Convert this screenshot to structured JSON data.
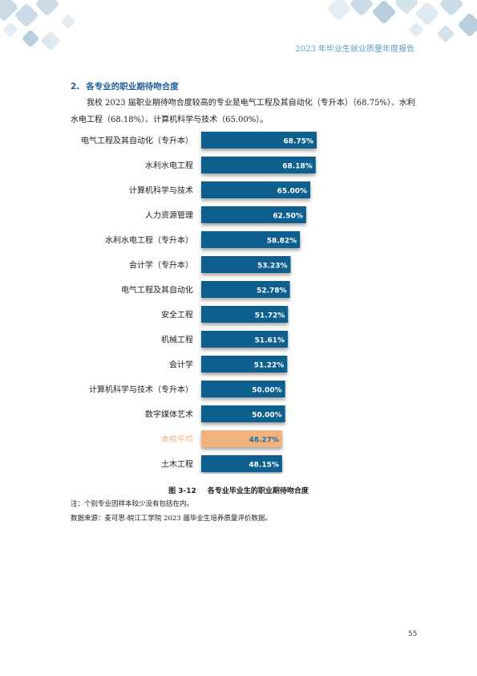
{
  "header": {
    "title": "2023 年毕业生就业质量年度报告"
  },
  "section": {
    "number": "2.",
    "title": "各专业的职业期待吻合度",
    "paragraph": "我校 2023 届职业期待吻合度较高的专业是电气工程及其自动化（专升本）（68.75%）、水利水电工程（68.18%）、计算机科学与技术（65.00%）。"
  },
  "figure": {
    "number": "图 3-12",
    "caption": "各专业毕业生的职业期待吻合度"
  },
  "notes": {
    "note": "注：个别专业因样本较少没有包括在内。",
    "source": "数据来源：麦可思-皖江工学院 2023 届毕业生培养质量评价数据。"
  },
  "page_number": "55",
  "colors": {
    "bar": "#0e5f8e",
    "highlight_bar": "#f2b27b",
    "highlight_text": "#1f6fa8",
    "deco_tiles": [
      "#c9d8e6",
      "#dfe9f1",
      "#b9cfe0",
      "#d4e2ec"
    ]
  },
  "chart_data": {
    "type": "bar",
    "orientation": "horizontal",
    "unit": "%",
    "highlight_category": "本校平均",
    "categories": [
      "电气工程及其自动化（专升本）",
      "水利水电工程",
      "计算机科学与技术",
      "人力资源管理",
      "水利水电工程（专升本）",
      "会计学（专升本）",
      "电气工程及其自动化",
      "安全工程",
      "机械工程",
      "会计学",
      "计算机科学与技术（专升本）",
      "数字媒体艺术",
      "本校平均",
      "土木工程"
    ],
    "values": [
      68.75,
      68.18,
      65.0,
      62.5,
      58.82,
      53.23,
      52.78,
      51.72,
      51.61,
      51.22,
      50.0,
      50.0,
      48.27,
      48.15
    ],
    "value_labels": [
      "68.75%",
      "68.18%",
      "65.00%",
      "62.50%",
      "58.82%",
      "53.23%",
      "52.78%",
      "51.72%",
      "51.61%",
      "51.22%",
      "50.00%",
      "50.00%",
      "48.27%",
      "48.15%"
    ]
  }
}
